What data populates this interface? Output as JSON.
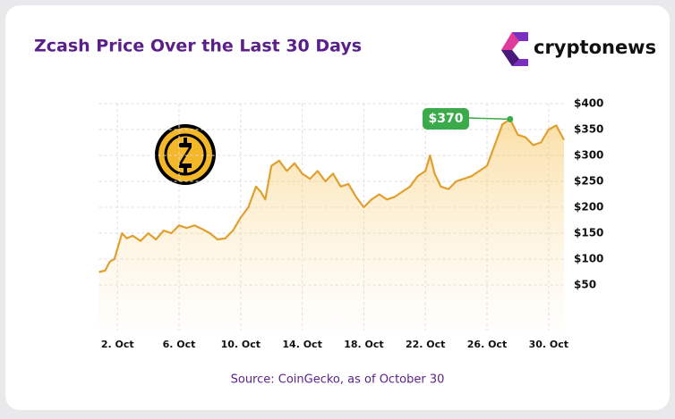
{
  "chart_data": {
    "type": "line",
    "title": "Zcash Price Over the Last 30 Days",
    "brand": "cryptonews",
    "source": "Source: CoinGecko, as of October 30",
    "x": [
      0.8,
      1.2,
      1.5,
      1.8,
      2.0,
      2.3,
      2.6,
      3.0,
      3.5,
      4.0,
      4.5,
      5.0,
      5.5,
      6.0,
      6.5,
      7.0,
      7.5,
      8.0,
      8.5,
      9.0,
      9.5,
      10.0,
      10.5,
      11.0,
      11.3,
      11.6,
      12.0,
      12.5,
      13.0,
      13.5,
      14.0,
      14.5,
      15.0,
      15.5,
      16.0,
      16.5,
      17.0,
      17.5,
      18.0,
      18.5,
      19.0,
      19.5,
      20.0,
      20.5,
      21.0,
      21.5,
      22.0,
      22.3,
      22.6,
      23.0,
      23.5,
      24.0,
      24.5,
      25.0,
      25.5,
      26.0,
      26.5,
      27.0,
      27.5,
      28.0,
      28.5,
      29.0,
      29.5,
      30.0,
      30.5,
      31.0
    ],
    "series": [
      {
        "name": "Zcash",
        "color": "#e0a030",
        "values": [
          75,
          78,
          95,
          100,
          120,
          150,
          140,
          145,
          135,
          150,
          138,
          155,
          150,
          165,
          160,
          165,
          158,
          150,
          138,
          140,
          155,
          180,
          200,
          240,
          230,
          215,
          280,
          290,
          270,
          285,
          265,
          255,
          270,
          250,
          265,
          240,
          245,
          220,
          200,
          215,
          225,
          215,
          220,
          230,
          240,
          260,
          270,
          300,
          265,
          240,
          235,
          250,
          255,
          260,
          270,
          280,
          320,
          360,
          370,
          340,
          335,
          320,
          325,
          350,
          358,
          330
        ]
      }
    ],
    "xlim": [
      0.8,
      31
    ],
    "xticks": [
      {
        "value": 2,
        "label": "2. Oct"
      },
      {
        "value": 6,
        "label": "6. Oct"
      },
      {
        "value": 10,
        "label": "10. Oct"
      },
      {
        "value": 14,
        "label": "14. Oct"
      },
      {
        "value": 18,
        "label": "18. Oct"
      },
      {
        "value": 22,
        "label": "22. Oct"
      },
      {
        "value": 26,
        "label": "26. Oct"
      },
      {
        "value": 30,
        "label": "30. Oct"
      }
    ],
    "ylim": [
      0,
      400
    ],
    "yticks": [
      {
        "value": 50,
        "label": "$50"
      },
      {
        "value": 100,
        "label": "$100"
      },
      {
        "value": 150,
        "label": "$150"
      },
      {
        "value": 200,
        "label": "$200"
      },
      {
        "value": 250,
        "label": "$250"
      },
      {
        "value": 300,
        "label": "$300"
      },
      {
        "value": 350,
        "label": "$350"
      },
      {
        "value": 400,
        "label": "$400"
      }
    ],
    "grid": true,
    "annotation": {
      "label": "$370",
      "x": 27.5,
      "value": 370
    }
  }
}
